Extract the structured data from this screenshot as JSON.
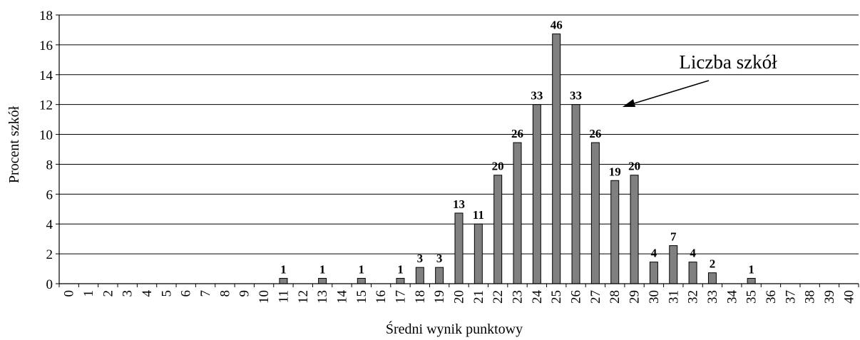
{
  "chart_data": {
    "type": "bar",
    "title": "",
    "xlabel": "Średni wynik punktowy",
    "ylabel": "Procent szkół",
    "ylim": [
      0,
      18
    ],
    "y_ticks": [
      0,
      2,
      4,
      6,
      8,
      10,
      12,
      14,
      16,
      18
    ],
    "grid": true,
    "legend": "none",
    "bar_color": "#808080",
    "categories": [
      "0",
      "1",
      "2",
      "3",
      "4",
      "5",
      "6",
      "7",
      "8",
      "9",
      "10",
      "11",
      "12",
      "13",
      "14",
      "15",
      "16",
      "17",
      "18",
      "19",
      "20",
      "21",
      "22",
      "23",
      "24",
      "25",
      "26",
      "27",
      "28",
      "29",
      "30",
      "31",
      "32",
      "33",
      "34",
      "35",
      "36",
      "37",
      "38",
      "39",
      "40"
    ],
    "values": [
      0,
      0,
      0,
      0,
      0,
      0,
      0,
      0,
      0,
      0,
      0,
      0.36,
      0,
      0.36,
      0,
      0.36,
      0,
      0.36,
      1.09,
      1.09,
      4.73,
      4.0,
      7.27,
      9.45,
      12.0,
      16.73,
      12.0,
      9.45,
      6.91,
      7.27,
      1.45,
      2.55,
      1.45,
      0.73,
      0,
      0.36,
      0,
      0,
      0,
      0,
      0
    ],
    "data_labels": [
      "",
      "",
      "",
      "",
      "",
      "",
      "",
      "",
      "",
      "",
      "",
      "1",
      "",
      "1",
      "",
      "1",
      "",
      "1",
      "3",
      "3",
      "13",
      "11",
      "20",
      "26",
      "33",
      "46",
      "33",
      "26",
      "19",
      "20",
      "4",
      "7",
      "4",
      "2",
      "",
      "1",
      "",
      "",
      "",
      "",
      ""
    ],
    "annotation": {
      "text": "Liczba szkół"
    }
  }
}
